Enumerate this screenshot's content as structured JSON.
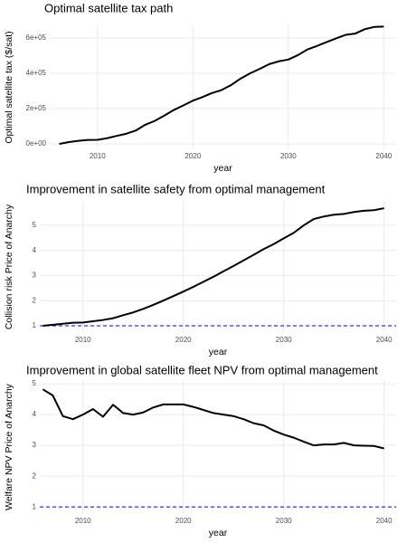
{
  "chart_data": [
    {
      "type": "line",
      "title": "Optimal satellite tax path",
      "x_label": "year",
      "y_label": "Optimal satellite tax ($/sat)",
      "x": [
        2006,
        2007,
        2008,
        2009,
        2010,
        2011,
        2012,
        2013,
        2014,
        2015,
        2016,
        2017,
        2018,
        2019,
        2020,
        2021,
        2022,
        2023,
        2024,
        2025,
        2026,
        2027,
        2028,
        2029,
        2030,
        2031,
        2032,
        2033,
        2034,
        2035,
        2036,
        2037,
        2038,
        2039,
        2040
      ],
      "series": [
        {
          "name": "tax",
          "color": "#000000",
          "values": [
            0,
            10000,
            17000,
            22000,
            23000,
            32000,
            45000,
            57000,
            75000,
            108000,
            130000,
            160000,
            192000,
            218000,
            245000,
            265000,
            288000,
            305000,
            333000,
            370000,
            400000,
            425000,
            452000,
            468000,
            478000,
            503000,
            535000,
            555000,
            577000,
            598000,
            618000,
            625000,
            650000,
            663000,
            665000
          ]
        }
      ],
      "xlim": [
        2005.0,
        2041.3
      ],
      "xticks": [
        2010,
        2020,
        2030,
        2040
      ],
      "ylim": [
        -31000,
        672000
      ],
      "yticks": [
        {
          "value": 0,
          "label": "0e+00"
        },
        {
          "value": 200000,
          "label": "2e+05"
        },
        {
          "value": 400000,
          "label": "4e+05"
        },
        {
          "value": 600000,
          "label": "6e+05"
        }
      ],
      "grid": true
    },
    {
      "type": "line",
      "title": "Improvement in satellite safety from optimal management",
      "x_label": "year",
      "y_label": "Collision risk Price of Anarchy",
      "x": [
        2006,
        2007,
        2008,
        2009,
        2010,
        2011,
        2012,
        2013,
        2014,
        2015,
        2016,
        2017,
        2018,
        2019,
        2020,
        2021,
        2022,
        2023,
        2024,
        2025,
        2026,
        2027,
        2028,
        2029,
        2030,
        2031,
        2032,
        2033,
        2034,
        2035,
        2036,
        2037,
        2038,
        2039,
        2040
      ],
      "series": [
        {
          "name": "safety",
          "color": "#000000",
          "values": [
            1.0,
            1.04,
            1.08,
            1.12,
            1.13,
            1.18,
            1.23,
            1.3,
            1.42,
            1.53,
            1.67,
            1.83,
            2.0,
            2.18,
            2.36,
            2.55,
            2.75,
            2.95,
            3.17,
            3.38,
            3.6,
            3.82,
            4.05,
            4.25,
            4.48,
            4.7,
            5.0,
            5.25,
            5.35,
            5.42,
            5.45,
            5.53,
            5.58,
            5.6,
            5.68
          ]
        }
      ],
      "reference_line": {
        "value": 1,
        "color": "#0000cc"
      },
      "xlim": [
        2005.7,
        2041.2
      ],
      "xticks": [
        2010,
        2020,
        2030,
        2040
      ],
      "ylim": [
        0.71,
        5.97
      ],
      "yticks": [
        1,
        2,
        3,
        4,
        5
      ],
      "grid": true
    },
    {
      "type": "line",
      "title": "Improvement in global satellite fleet NPV from optimal management",
      "x_label": "year",
      "y_label": "Welfare NPV Price of Anarchy",
      "x": [
        2006,
        2007,
        2008,
        2009,
        2010,
        2011,
        2012,
        2013,
        2014,
        2015,
        2016,
        2017,
        2018,
        2019,
        2020,
        2021,
        2022,
        2023,
        2024,
        2025,
        2026,
        2027,
        2028,
        2029,
        2030,
        2031,
        2032,
        2033,
        2034,
        2035,
        2036,
        2037,
        2038,
        2039,
        2040
      ],
      "series": [
        {
          "name": "npv",
          "color": "#000000",
          "values": [
            4.82,
            4.62,
            3.95,
            3.85,
            4.0,
            4.18,
            3.93,
            4.32,
            4.05,
            4.0,
            4.07,
            4.23,
            4.33,
            4.33,
            4.33,
            4.25,
            4.15,
            4.05,
            4.0,
            3.95,
            3.85,
            3.72,
            3.65,
            3.48,
            3.35,
            3.25,
            3.12,
            3.0,
            3.03,
            3.03,
            3.08,
            3.0,
            2.99,
            2.98,
            2.9
          ]
        }
      ],
      "reference_line": {
        "value": 1,
        "color": "#0000cc"
      },
      "xlim": [
        2005.7,
        2041.2
      ],
      "xticks": [
        2010,
        2020,
        2030,
        2040
      ],
      "ylim": [
        0.77,
        5.12
      ],
      "yticks": [
        1,
        2,
        3,
        4,
        5
      ],
      "grid": true
    }
  ]
}
